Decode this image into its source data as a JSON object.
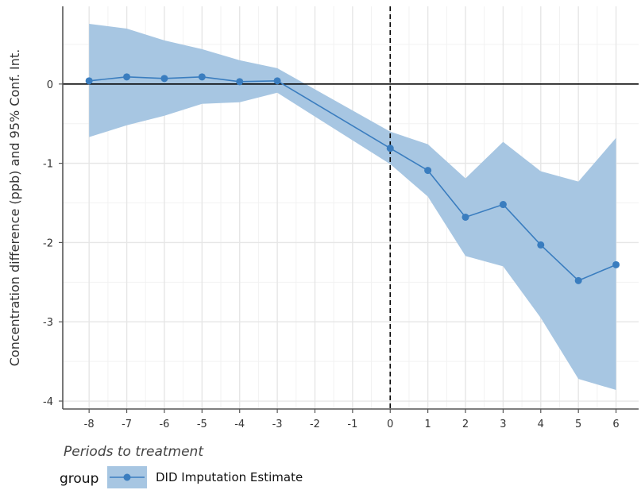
{
  "chart_data": {
    "type": "line",
    "title": "",
    "xlabel": "Periods to treatment",
    "ylabel": "Concentration difference (ppb) and 95% Conf. Int.",
    "xlim": [
      -8.7,
      6.6
    ],
    "ylim": [
      -4.1,
      0.98
    ],
    "x_ticks": [
      -8,
      -7,
      -6,
      -5,
      -4,
      -3,
      -2,
      -1,
      0,
      1,
      2,
      3,
      4,
      5,
      6
    ],
    "y_ticks": [
      0,
      -1,
      -2,
      -3,
      -4
    ],
    "grid": true,
    "reference_lines": {
      "horizontal_y": 0,
      "vertical_dashed_x": 0
    },
    "legend": {
      "placement": "bottom-left",
      "title": "group"
    },
    "series": [
      {
        "name": "DID Imputation Estimate",
        "color": "#3a7dbf",
        "band_color": "#a7c6e2",
        "x": [
          -8,
          -7,
          -6,
          -5,
          -4,
          -3,
          0,
          1,
          2,
          3,
          4,
          5,
          6
        ],
        "y": [
          0.04,
          0.09,
          0.07,
          0.09,
          0.03,
          0.04,
          -0.81,
          -1.09,
          -1.68,
          -1.52,
          -2.03,
          -2.48,
          -2.28
        ],
        "lower": [
          -0.67,
          -0.52,
          -0.4,
          -0.25,
          -0.23,
          -0.11,
          -1.01,
          -1.42,
          -2.17,
          -2.3,
          -2.95,
          -3.72,
          -3.86
        ],
        "upper": [
          0.76,
          0.7,
          0.55,
          0.44,
          0.3,
          0.2,
          -0.6,
          -0.76,
          -1.19,
          -0.73,
          -1.1,
          -1.23,
          -0.68
        ]
      }
    ]
  }
}
